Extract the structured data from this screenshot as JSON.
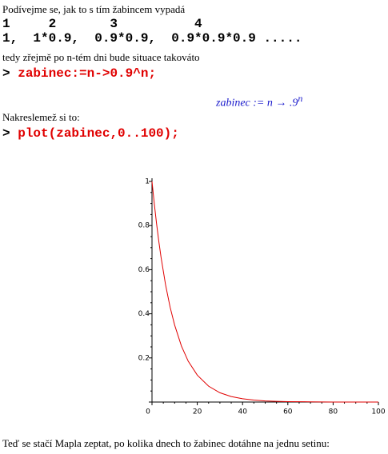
{
  "lines": {
    "intro": "Podívejme se, jak to s tím žabincem vypadá",
    "days": "1     2       3          4",
    "products": "1,  1*0.9,  0.9*0.9,  0.9*0.9*0.9 .....",
    "then": "tedy zřejmě po n-tém dni bude situace takováto",
    "draw": "Nakreslemež si to:",
    "ask": "Teď se stačí Mapla zeptat, po kolika dnech to žabinec dotáhne na jednu setinu:"
  },
  "inputs": [
    {
      "prompt": ">",
      "command": "zabinec:=n->0.9^n;"
    },
    {
      "prompt": ">",
      "command": "plot(zabinec,0..100);"
    }
  ],
  "output": {
    "text": "zabinec := n → .9",
    "exponent": "n"
  },
  "chart_data": {
    "type": "line",
    "color": "#e00000",
    "x": [
      0,
      1,
      2,
      3,
      4,
      6,
      8,
      10,
      13,
      16,
      20,
      25,
      30,
      35,
      40,
      45,
      50,
      55,
      60,
      70,
      80,
      90,
      100
    ],
    "values": [
      1,
      0.9,
      0.81,
      0.729,
      0.656,
      0.531,
      0.43,
      0.349,
      0.254,
      0.185,
      0.122,
      0.072,
      0.042,
      0.025,
      0.015,
      0.009,
      0.005,
      0.003,
      0.002,
      0.001,
      0,
      0,
      0
    ],
    "xlim": [
      0,
      100
    ],
    "ylim": [
      0,
      1
    ],
    "xticks": [
      0,
      20,
      40,
      60,
      80,
      100
    ],
    "yticks": [
      0,
      0.2,
      0.4,
      0.6,
      0.8,
      1
    ]
  }
}
